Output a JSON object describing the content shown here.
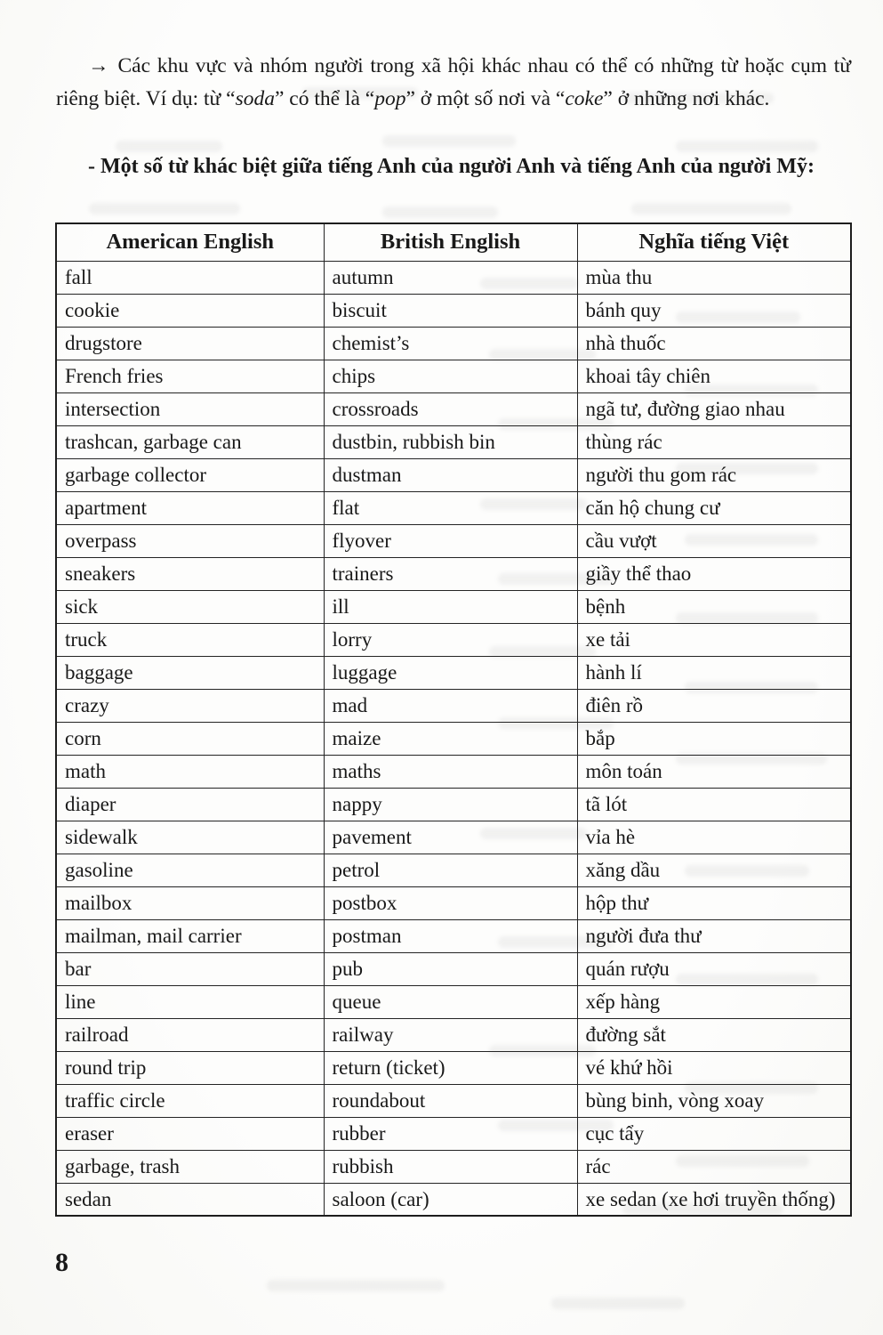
{
  "intro": {
    "bullet": "→",
    "segments": [
      {
        "text": "Các khu vực và nhóm người trong xã hội khác nhau có thể có những từ hoặc cụm từ riêng biệt. Ví dụ: từ “",
        "italic": false
      },
      {
        "text": "soda",
        "italic": true
      },
      {
        "text": "” có thể là “",
        "italic": false
      },
      {
        "text": "pop",
        "italic": true
      },
      {
        "text": "” ở một số nơi và “",
        "italic": false
      },
      {
        "text": "coke",
        "italic": true
      },
      {
        "text": "” ở những nơi khác.",
        "italic": false
      }
    ]
  },
  "heading": {
    "text": "- Một số từ khác biệt giữa tiếng Anh của người Anh và tiếng Anh của người Mỹ:"
  },
  "table": {
    "headers": [
      "American English",
      "British English",
      "Nghĩa tiếng Việt"
    ],
    "rows": [
      [
        "fall",
        "autumn",
        "mùa thu"
      ],
      [
        "cookie",
        "biscuit",
        "bánh quy"
      ],
      [
        "drugstore",
        "chemist’s",
        "nhà thuốc"
      ],
      [
        "French fries",
        "chips",
        "khoai tây chiên"
      ],
      [
        "intersection",
        "crossroads",
        "ngã tư, đường giao nhau"
      ],
      [
        "trashcan, garbage can",
        "dustbin, rubbish bin",
        "thùng rác"
      ],
      [
        "garbage collector",
        "dustman",
        "người thu gom rác"
      ],
      [
        "apartment",
        "flat",
        "căn hộ chung cư"
      ],
      [
        "overpass",
        "flyover",
        "cầu vượt"
      ],
      [
        "sneakers",
        "trainers",
        "giầy thể thao"
      ],
      [
        "sick",
        "ill",
        "bệnh"
      ],
      [
        "truck",
        "lorry",
        "xe tải"
      ],
      [
        "baggage",
        "luggage",
        "hành lí"
      ],
      [
        "crazy",
        "mad",
        "điên rồ"
      ],
      [
        "corn",
        "maize",
        "bắp"
      ],
      [
        "math",
        "maths",
        "môn toán"
      ],
      [
        "diaper",
        "nappy",
        "tã lót"
      ],
      [
        "sidewalk",
        "pavement",
        "vỉa hè"
      ],
      [
        "gasoline",
        "petrol",
        "xăng dầu"
      ],
      [
        "mailbox",
        "postbox",
        "hộp thư"
      ],
      [
        "mailman, mail carrier",
        "postman",
        "người đưa thư"
      ],
      [
        "bar",
        "pub",
        "quán rượu"
      ],
      [
        "line",
        "queue",
        "xếp hàng"
      ],
      [
        "railroad",
        "railway",
        "đường sắt"
      ],
      [
        "round trip",
        "return (ticket)",
        "vé khứ hồi"
      ],
      [
        "traffic circle",
        "roundabout",
        "bùng binh, vòng xoay"
      ],
      [
        "eraser",
        "rubber",
        "cục tẩy"
      ],
      [
        "garbage, trash",
        "rubbish",
        "rác"
      ],
      [
        "sedan",
        "saloon (car)",
        "xe sedan (xe hơi truyền thống)"
      ]
    ]
  },
  "page_number": "8",
  "colors": {
    "ink": "#191919",
    "paper": "#fdfdfc",
    "border": "#1d1d1d"
  }
}
